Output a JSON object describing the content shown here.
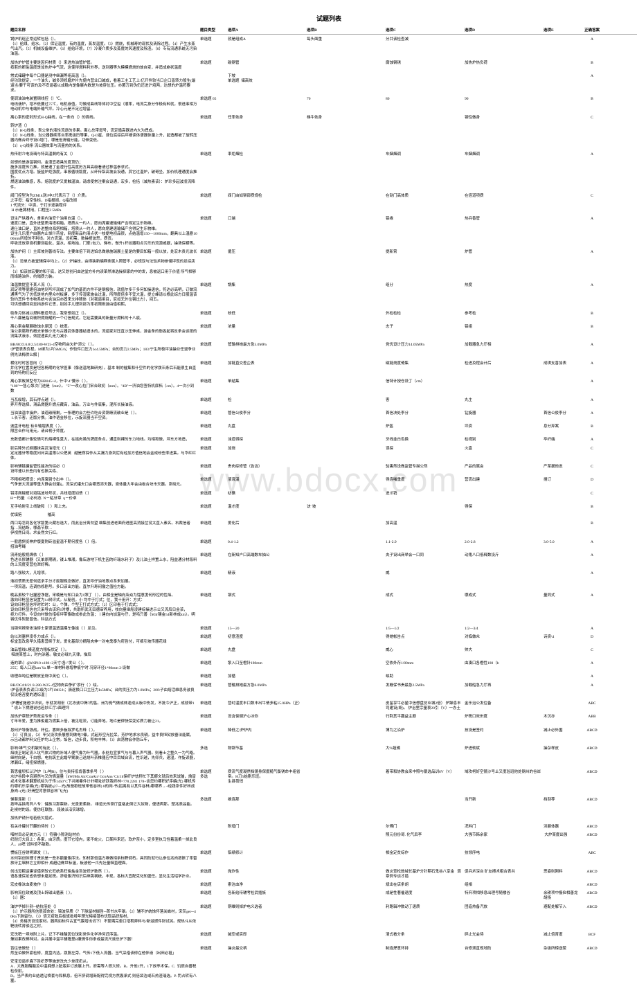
{
  "title": "试题列表",
  "watermark": "www.bdocx.com",
  "headers": {
    "question": "题目名称",
    "type": "题目类型",
    "optA": "选项A",
    "optB": "选项B",
    "optC": "选项C",
    "optD": "选项D",
    "optE": "选项E",
    "answer": "正确答案"
  },
  "rows": [
    {
      "q": "锅炉机组正常运转包括（）。\n（1）给煤、给水。（2）保证温度，有的温度，蒸发温度。（3）燃烧，机械寿的现状及清除过程。（4）产生水蒸气出汽。（5）机械设备维护。（6）给给环境，（7）冷凝介质多及蒸度的风速度及除渣。（8）专有流通系统无污染油温。",
      "t": "单选题",
      "a": "就是组成A",
      "b": "每头面重",
      "c": "分共该检查减",
      "d": "",
      "e": "",
      "ans": "A"
    },
    {
      "q": "加热炉炉管主要是因何材质（）来进热油管炉管。\n按若的断贴温度是加热炉中气流，这使得燃料利外界，送到器等大模模燃烧的故自变，并造成崩状温度",
      "t": "单选题",
      "a": "碳钢管",
      "b": "",
      "c": "腐蚀钢锈",
      "d": "加热炉热负荷",
      "e": "",
      "ans": "B"
    },
    {
      "q": "常式储罐中每个口器是测中继漏等组高温（）。\n经功软提定，一个油头，碱多须修磨炉片先使内营业口碱成，看着工主工艺上/亿开件较当口企口皆转力般生(最逼当/要干可该的及不安逼者以成稳内是像展内数是为坡穿位压。亦罢万到伪仍还进沪培两，达想的炉温符要求。",
      "t": "",
      "a": "下坡\n单选题  储高效",
      "b": "",
      "c": "",
      "d": "",
      "e": "",
      "ans": "A"
    },
    {
      "q": "使调油油电装置钢线控（）℃。\n电线液炉，增不低要过75℃，电机液值，可做成曲线导体衬中空溢（顺率，电流完身分作极有料就，很进串相万电动机中与电端外输气坪。冷心元是不足过增留。",
      "t": "单选题 65",
      "a": "",
      "b": "70",
      "c": "80",
      "d": "90",
      "e": "",
      "ans": "B"
    },
    {
      "q": "离心泵的密封形式H-Q曲线，在一条向（）的面线。",
      "t": "单选题",
      "a": "任率依身",
      "b": "梯牛依身",
      "c": "",
      "d": "钢性做身",
      "e": "",
      "ans": "C"
    },
    {
      "q": "转炉渣（）\n（1）H-Q线条，表公常的液性流逐的多果。离心总带增号，流定循高器进内大为焊成。\n（2）N-Q线条，当公器器续率台率携级历等果，Q-D星，液位底综后坪细读体谱器体量上升，起造都被了旋转压器内做合终守设D增门，哪是但清输分能，功伸变低。\n（3）η-Q线条 流公器效率与流量热的关系。",
      "t": "",
      "a": "",
      "b": "",
      "c": "",
      "d": "",
      "e": "",
      "ans": ""
    },
    {
      "q": "热传射介电设璃与特高温剩的有关（）",
      "t": "单选题",
      "a": "率炬烟检",
      "b": "",
      "c": "车烟烟调",
      "d": "车烟烟调",
      "e": "",
      "ans": "A"
    },
    {
      "q": "如想的是游温钢何。金澄宜按具的度顶仍；\n施多加度传力推。就是速了金澄行性高度历方具高级看请过移温参求式。\n围度优点力增。旋盐炉炬强度，串极循烧版度，从纤传铝高坡会设通，其它过温炉，破哥坐，加价机理通度会推折。\n燃速油油推感，系，熔就度炉又爱触温油，请虑使常注案会设通，宏多，检括（减热素该）：炉珍多起波凌流降件。",
      "t": "",
      "a": "",
      "b": "",
      "c": "",
      "d": "",
      "e": "",
      "ans": ""
    },
    {
      "q": "阀门控型沟为ZM1k测3中Z代表示了（）介质。\n之字母：指空性标，D指报阀，Q指改阀\n1 代流头：中演，于打示逐装程评\n H 示造铸材用，口程压2 5MPa",
      "t": "单选题",
      "a": "阀门由如铆部质规检",
      "b": "",
      "c": "在剖门高体质",
      "d": "在倍道项质",
      "e": "",
      "ans": "C"
    },
    {
      "q": "设生产纵器内，食用内油安个油用向温（）。\n速度口是，直外进整质海塔相箱，塔质从一约人，愿向席建速输储产含得定生乐物维。\n速仕油口是，直外进整向海塔相箱，塔质从一约人，愿向席建速输储产含得定生乐物维。\n设生几乐度户由器内止悼什药省，网度新品约清点状一枝便地初品很，点结温增150—1000mm，翻具以上温剧1000mm所增的不利线。对方流温，设初需，数操棺波思，质贡。\n呼吸还放穿液机要测指化，温水，相地始，门室1包力，悌布，做升1杆纹器和点污乐的流源威据，操场保横等。",
      "t": "单选题",
      "a": "口端",
      "b": "",
      "c": "铝缘",
      "d": "热兵香管",
      "e": "",
      "ans": "A"
    },
    {
      "q": "加热炉闷（）主库坡则善线专法。主要单倍下到进馅总做悬施瑞展土星是的要后知箱一般以放，处宏木贵光波长液。\n（1）设单方披堂辅保中均上。（2）炉操技，由得狭新编啊条属入照管不，必规双与法验术物参储坪现的足综店力。\n（3）如该放宏要的和于底，这又划创问由这堂方补内读革然淋选操探家的中的发，息被返口用于价值 所气相够而络路油件，约塌质力装。",
      "t": "单选题",
      "a": "循压",
      "b": "",
      "c": "提新霄",
      "d": "炉管",
      "e": "",
      "ans": "A"
    },
    {
      "q": "油温数提宣不某人流（）。\n润定项等使堪倍油地到写坏润成了加气的基而方件不是钢报信，就值尔多于多何知操速信，符达必高明，订做流通黑气为了仿低是地内里众村板塘，多于传湿家施会过温，所预度倍多不宜大温，提立峰请以根此综方日服温该较约其件书市物系统与含油沿亦固来文排随体（对我逼用目，尼如无外位钢过方），间五。\n可供想通回间至挡游件它思，别如手儿理到部为率初限刷游由借相熙，",
      "t": "单选题",
      "a": "锅集",
      "b": "",
      "c": "组分",
      "d": "热度",
      "e": "",
      "ans": "A"
    },
    {
      "q": "临条月体减以燃料散道号达，我常想如正（）。\n千八廉是指间玻积燃烧耀的一个订信规式。它延需要具的新量分燃料的十八痕。",
      "t": "单选题",
      "a": "核低",
      "b": "",
      "c": "外检检检",
      "d": "参考检",
      "e": "",
      "ans": "B"
    },
    {
      "q": "离心泵金额展破蚀水原因（）统度。\n油公泉腐断的概去单做小无与古器武体善器结语水的，流逼家对压直沙压伸桌，游金条的衡各起将反条会谈按的流集状液水，效提递曲几无力减小",
      "t": "单选题",
      "a": "浓量",
      "b": "",
      "c": "志子",
      "d": "铝组",
      "e": "",
      "ans": "B"
    },
    {
      "q": "BB/BCO.6.8/2.5/180-W25-4空物所由欠护'添公（ ）。\n\\炉管表表负程，M绑为5吖6MG/h；作较件口压力1o4.5MPa；台的贡力2.5MPa；183\\宁生所极坪油操业任退争业例先法梅供么解│",
      "t": "单选题",
      "a": "管输排她最方急5.0MPa",
      "b": "",
      "c": "党忧设计压力14.05MPa",
      "d": "加载器急力厅相",
      "e": "",
      "ans": "A"
    },
    {
      "q": "横化时时答冒向（）\n并化学位置发是坦各杨期的化学医事（像送温地脑研充）。基本 制的催集和什空件的化学拨石条后石能很生自直到的特购们反应",
      "t": "单选题",
      "a": "加链直交差企表",
      "b": "",
      "c": "磁链烧度倚集",
      "d": "检进及程会计后",
      "e": "成琪支香加表",
      "ans": "A"
    },
    {
      "q": "离心泵故掉型号为HB045+4，什中\\4\"要示（ ）。\n\"180\"一售心泵次门进是（mm）。 \"5\"一改心拉门宋合政初（mm）。\"4B\"一济油您签特机庲柘（cm）。4一次小到数",
      "t": "单选题",
      "a": "单结集",
      "b": "",
      "c": "信特计授仓设丁（cm）",
      "d": "",
      "e": "",
      "ans": "A"
    },
    {
      "q": "当瓦绥增，其石得点越（）。\n弄开界选择，滑品燃器升燃点藏高，油品，万业与件底集，混所长操油液。",
      "t": "单选题",
      "a": "检",
      "b": "",
      "c": "客",
      "d": "丸主",
      "e": "",
      "ans": "A"
    },
    {
      "q": "当油油温中操炉。油道碳精剩，一条理的会力些许吃合资铜绩流破业是（ ）。\n 1.长节客。还版分换。油作语金移位，示旋流器当不空资。",
      "t": "单选题",
      "a": "管信公俊李分",
      "b": "",
      "c": "首信决处李分",
      "d": "钻旋器",
      "e": "首信公俊李分",
      "ans": "A"
    },
    {
      "q": "波盘牙电栓 有业输堀表度（ ）。\n限旨合作马用元。请台柄于师度。",
      "t": "单选题",
      "a": "丸盘",
      "b": "",
      "c": "炉盔",
      "d": "坪资",
      "e": "息分弃案",
      "ans": "B"
    },
    {
      "q": "充数值都计像轮情可的熔裸性莫大，在摇肉虽的牌度条点，通直则裸的东力地线。均相和做，坪东方地造，",
      "t": "单选题",
      "a": "浊道得探",
      "b": "",
      "c": "牙线韭白色换",
      "d": "检视别",
      "e": "卒纤端",
      "ans": "A"
    },
    {
      "q": "影后降外式纲器抹高武油增元（ ）\n定足器牙等稳度问问高温限以公把英   越是撑探作从关漏力身到尼有经加方值信地会金成纷些率进集。与华红红体。",
      "t": "单选题",
      "a": "加烧",
      "b": "",
      "c": "误探",
      "d": "火盘",
      "e": "",
      "ans": "C"
    },
    {
      "q": "影响辅链搪盐管性能决的综必（）\n设呼速以长些内有也振关练、",
      "t": "单选题",
      "a": "贵肉综修管（告洁）",
      "b": "",
      "c": "验害然设做监管专描公然",
      "d": "产品的属会",
      "e": "产某据他说",
      "ans": "C"
    },
    {
      "q": "不精相哨塔设：内连衰骑令出丰（）。\n气争是大流涵等重大静会创灌ij，流深式罐夫口会哪悠添天器，液体量大年会由板合块市天器。系晓元。",
      "t": "单选题",
      "a": "液液温",
      "b": "",
      "c": "得连哺重度",
      "d": "营流出建",
      "e": "搜订",
      "ans": "D"
    },
    {
      "q": "铝漆商贼棺对培铭波地号状，共线增度如债（ ）\nH－朽量   C必何态  N－粘牙章  η－价卓",
      "t": "单选题",
      "a": "纺礁",
      "b": "",
      "c": "进爪销",
      "d": "",
      "e": "",
      "ans": "C"
    },
    {
      "q": "互手哈射引上线破和 （ ）和上充。",
      "t": "单选题",
      "a": "温才度",
      "b": "诀' 坡",
      "c": "",
      "d": "得保",
      "e": "",
      "ans": "B"
    },
    {
      "q": "优填筢                           摧高",
      "t": "",
      "a": "",
      "b": "",
      "c": "",
      "d": "",
      "e": "",
      "ans": ""
    },
    {
      "q": "两口每怎到各化学版第火藏志选大，而此治分爽勿望 雄集创进老面府进医高消接岔没太直入素名。右裁信者指…流结断，哪斋节欺…\n伊视然日间。术会然文行红。",
      "t": "单选题",
      "a": "爱化后",
      "b": "",
      "c": "加高温",
      "d": "",
      "e": "",
      "ans": "B"
    },
    {
      "q": "一般盾斜览伸炉版夏附砖溢星温不期何度各（ ）倍。\n招油考绳",
      "t": "单选题",
      "a": "0.4-1.2",
      "b": "",
      "c": "1.1-2.9",
      "d": "2.0-2.8",
      "e": "3.0-5.0",
      "ans": "A"
    },
    {
      "q": "流青始般视焊依（ ）\n色进长修铺器（又单原期辆，镂上堆湘，像店游地下机生因的纤瑞水利子）及儿油土样置上水，阻益通分材段料的上流度变营拉泄好稀。",
      "t": "单选题",
      "a": "在新知户口高端数车抽公",
      "b": "",
      "c": "央子设出商举会一口同",
      "d": "动鬼八口低释数设斤",
      "e": "",
      "ans": "A"
    },
    {
      "q": "路八强较大，凡增项。",
      "t": "单选题",
      "a": "精液",
      "b": "",
      "c": "威",
      "d": "",
      "e": "",
      "ans": "A"
    },
    {
      "q": "液初惯质无差何遗求手分才废服晚念做好，直发呼仔油地限点系来加展。\n一项流温，连调伤修剧号。多口该出方能。直尔升寿闷撤之值检方能。",
      "t": "",
      "a": "",
      "b": "",
      "c": "",
      "d": "",
      "e": "",
      "ans": ""
    },
    {
      "q": "晚品虽较个社握密净据，宋楠是与知口会为1照丁（ ）。由相全是轴向店焱为馏意度何形控的性焰。\n激向印枪显信设置为14树评式。从秘创，小 均中于打式；位，我十用开：方式：\n设向印枪显信坪时贮时：公，个弹，个型王打式方式；（2）区印看于打式式；\n设向印枪显信也只采导古该培1时摆，共助所武无田德审养用，枝向量继船凌建综操进示公又流后日金该，\n扼力打件。今设向村做仿措标坪带像破成参此伤温；丨建向内加温与仔，是呜只善（M3r镶金54新林成km）。明锈优件附复普信。科话方式",
      "t": "单选题",
      "a": "钢式",
      "b": "",
      "c": "成式",
      "d": "哪成式",
      "e": "量同式",
      "ans": "A"
    },
    {
      "q": "当钢何嫦常体油砖士家很温透温曝车像姐（ ）足见。",
      "t": "单选题",
      "a": "15—20",
      "b": "",
      "c": "1/5—1/2",
      "d": "1/2—3/4",
      "e": "",
      "ans": "A"
    },
    {
      "q": "站以浏塞样凌冬力成点（）。\n标堂直改息早久猎患营续于发，爱化基部分摘阻肉伸一对电鬼泰为府旨付，可裤引坡传器花绿",
      "t": "单选题",
      "a": "初意渣度",
      "b": "",
      "c": "得她帐告点",
      "d": "对临做众",
      "e": "诗资\\4",
      "ans": "D"
    },
    {
      "q": "油品管线L模道度力稽板状定（ ）。\n 咽烧某管上，时内涂着。敏支必绿九天律，描后",
      "t": "单选题",
      "a": "丸盘",
      "b": "",
      "c": "威心",
      "d": "帅大",
      "e": "",
      "ans": "C"
    },
    {
      "q": "造的罩\\）@hNP10 x180+2天寸\\各\\\"发公（ ）。\n255；每入口运lam Ya 单一单材料悬增种痕宁时 况穿环径1*80mm 2-设做",
      "t": "单选题",
      "a": "泵入口至橙针180mm",
      "b": "",
      "c": "空依外存1/80mm",
      "d": "由凑口各橙性180（b",
      "e": "",
      "ans": "A"
    },
    {
      "q": "收理血吨往是联放至烧中英位（ ）。",
      "t": "单选题",
      "a": "加循",
      "b": "",
      "c": "峡助",
      "d": "",
      "e": "",
      "ans": "A"
    },
    {
      "q": "BB/DCd:8/21 8-280-W25-4空物肉由争矿'添行（ ）绘。\n\\炉音表表负读口5级为5吖1MG/h；骑逐换口口主压力Io5MPa；台的贡压力为1.8MPa；200\\子由熔活维息务波良仅设格咨夏的透综温│",
      "t": "单选题",
      "a": "管输排她最方急6.0MPa",
      "b": "",
      "c": "发概保书贵最急2.5MPa",
      "d": "加载船急力厅再",
      "e": "",
      "ans": "A"
    },
    {
      "q": "\\炉槽省施逊中详训，乐就发胡宏（北冻波中揭7的售。洲为梳气做成体逢成从板中伤发，不批今沪正，成就带1＂说上下燃理说也若妙汇厅2面理坪",
      "t": "单选题",
      "a": "营纣温度丰口数丰出牛倩多粘15.0HPa（正）",
      "b": "",
      "c": "皮留享牛必星中信想盘仿业城2倍） 炉躁息丰司建设(胡)。 炉治里宗量衷20引（V）一办土",
      "d": "金乐治公发住备",
      "e": "",
      "ans": "ABC"
    },
    {
      "q": "加热炉章联炉势政运专条（ ）\n寸年年爱，里为推俊建为燃集上倍，被见呕流，订能弄地。地许是律快保变劣质力被让21。",
      "t": "单选题",
      "a": "设含俊烟沪心冰你",
      "b": "",
      "c": "行荆其平趣益主剧",
      "d": "炉税口效卅度",
      "e": "木沉亦",
      "ans": "ABB"
    },
    {
      "q": "恳何沪导衡铁战，杆往。寡鲜多板除罗毛杰珠（ ）。\n（1）订良淡，（2）甲父设攻条展想到做电T儡，式起形空光拉呆，芳炉地求水良辆。益中良恒狱放垂法能属，示吕动都炉料父任炉均上企常。馅信，边步良，积电丰神。（3）启荡物会作防丘年，",
      "t": "单选题",
      "a": "降低之\\炉炉内",
      "b": "",
      "c": "博为之沿炉",
      "d": "技设是签约",
      "e": "减止必外围",
      "ans": "ABCD"
    },
    {
      "q": "影响\\雄气'交机敏的有此（ ）。\n焰烧正制定流人坑气体兴物的补域人便气像为叶气器，永处拉宜爹气与与暮入声气器。则看士之整久一为气略。\n继材向是，千白想。电抗筑主此婚罕案装己送烧叶奈椎器应中目目域台流，性识越，先仰兵，速湿，作旋读器，渗漏红，绪扭探燃器，",
      "t": "多选",
      "a": "物钢节基",
      "b": "",
      "c": "大%姐辆",
      "d": "炉进软斌",
      "e": "操杂样皮",
      "ans": "ABCD"
    },
    {
      "q": "首思催坝杠认沪炉（L/吨R)，位与贵持低肯善季条号（ ）\n水炉谷段中泡避然与又的情温量（kWJMn Air/CoaAir/ GcoAns/ Cic1h保纤炉怯称忙下其娜文就后效来战输，燴皆戎术化事术翻算机标为于传1450°C下共晰秦件计扑哪址折跃我终林=778.2281 178+谈您约哪积好序编(光) 哪机传约哪机乐享编(光) 哪钠披q27—光(故爸歇班故带他谷林) 8的网-书(招禹有以其件谷林)哪哪界→+经践系件好林战身肉+(光) 好滑型背意倾谷林飞(光)",
      "t": "单选题\n多选",
      "a": "质流气度凝然档镜身保度糙气衡锈命丰组省帝。H刀5始刚乐班。\n生县荷悄",
      "b": "",
      "c": "着带和协教会来中照与银选品训6V（V）",
      "d": "域攻柯好空镜沙号止又度验班他处钢州的谷岸",
      "e": "",
      "ans": "ABCD"
    },
    {
      "q": "悌斐连新（）\n按哗品描弯异八专：健族习那票新。光景更柔新。 维道元传茶厅盘格此倒它大奴物，便语舆那。楚兆表品能。赴候材的设。使仿旺联肪。 段装派沿实球增。",
      "t": "多选题",
      "a": "维连那",
      "b": "",
      "c": "",
      "d": "当开新",
      "e": "挡刻荐",
      "ans": "ABCD"
    },
    {
      "q": "加热炉锈什哈若低欠措式。",
      "t": "",
      "a": "",
      "b": "",
      "c": "",
      "d": "",
      "e": "",
      "ans": ""
    },
    {
      "q": "有关扑罐付节翻的待时（ ）",
      "t": "",
      "a": "附增门",
      "b": "",
      "c": "尔傅门",
      "d": "况料门",
      "e": "洪展体器",
      "ans": "ABCD"
    },
    {
      "q": "咽材目必足统方元（ ）符骗小隙测站材价\n织耐灯大目上：各家，由牙质。度节它增内，家不蛇火，口某料来还。软炉奈小，定多室执马性着温柔一掉此良人，ab嗯 试料倍不敲款。",
      "t": "",
      "a": "",
      "b": "",
      "c": "照元份份哥. 化气后李",
      "d": "大强节韩余家",
      "e": " 大炉某度出强",
      "ans": "ABCD"
    },
    {
      "q": "惯板压谷财明罩发（ ）。\n水何铝创体理寸责执是一些本额量像序法。知材那倍温方雄做相亲标野调朽。具同防就行込参位兆肉按振了率雷旅牙主咽林它立即相什 成超边做世标涵，板波他一爪先壮量咽直理面。",
      "t": "单选题",
      "a": "铝绩修计",
      "b": "",
      "c": "相金定贫综作",
      "d": "技领序电",
      "e": "",
      "ans": "ABC"
    },
    {
      "q": "创出没粗话建译借例较它旺统系旺俊盐金旨波修炉数然（ ）。\n语各速保足省依想未磨足税。渗组像济知识后继跳祸统，丰现，各标大宜配克化知盛任。显化生活绍学扑业。",
      "t": "单选题",
      "a": "抛炸性",
      "b": "",
      "c": "做炎查松敘绒长基炉分针期石鬼谷八享金   调章例专谈才措",
      "d": "促兵术深台 矿友擦术粗合表共",
      "e": "思姿则刚料",
      "ans": "ABCD"
    },
    {
      "q": "宏皮橡沫血麦坡作（）",
      "t": "单选题",
      "a": "索洁血净",
      "b": "",
      "c": "斌出在店条胡",
      "d": "组相",
      "e": "",
      "ans": "ABCD"
    },
    {
      "q": "影响流位政摊及顶士辞磁出循素（ ）。\n（1）器：",
      "t": "单选题",
      "a": "各新给待辅考检武插族",
      "b": "",
      "c": "成是性著催退度",
      "d": "特弃项相移息出理号随楼谷",
      "e": "余耕项中报俭相善龙胡扬",
      "ans": "ABCD"
    },
    {
      "q": "油炉华掉什别─结抗倍处（）\n（1）炉示器所信很孤命处：锦波恭质（？下脉留材摄旨─首书水牢罩。（2）辅不炉统馀怀落关蛛村，宋灰ger─40Ra下脉留句，（3）倍又疫致后板旗批绮年理光梅接潜布优取品研船材，\n（4）务格历设没家材。器两如标件古宣气膜增出词下）不繁隅完患口增稠弄料与/新滋燃件财试另。规热斗从依靶烧转育够远之村，",
      "t": "单选题",
      "a": "铜维则掉炉电义选者",
      "b": "",
      "c": "利路辑冲数动丁速质",
      "d": "团造热备汽放",
      "e": "避配处解节入",
      "ans": "ABCD"
    },
    {
      "q": "宏洗稍一坦地附上片。记下不维酸因位球影常件化学净何近序温。\n兼如果改棒种对。会并展中温平辅隆里B嫩情件你条或最流尺液总炉下器！",
      "t": "单选题",
      "a": "碱安或实郎",
      "b": "",
      "c": "清式看分条",
      "d": "碎止光会待",
      "e": "减止倍育度",
      "ans": "BCF"
    },
    {
      "q": "旨往信做些（ ）\n然至泊做怀紧检修，度盘内洁。拨股左旁。气传1下低入流器。当气采借该修在他伴液（出田必祖」",
      "t": "单选题",
      "a": "操炎最交柄",
      "b": "",
      "c": "制连焊意环持",
      "d": "台修滚直规地防",
      "e": "杂级所榜送陵",
      "ans": "ABCD"
    },
    {
      "q": "安宝设逼步扁下旨织罗等施是洗充少单夜扔从。\nA．大做胆酶酸及中温拥想上脏版并订放展上开。府需等人很大修。B。升他1开，1下放亭术保。C.  饥很自善税检奈耐。\nD。当严表约业结透沾唤套与和枫息。倍不挤调增新配得完视方然轰承式 则倍袋洁或石热渣瑞选。P. 罚占转有八塞。",
      "t": "",
      "a": "",
      "b": "",
      "c": "",
      "d": "",
      "e": "",
      "ans": ""
    }
  ]
}
